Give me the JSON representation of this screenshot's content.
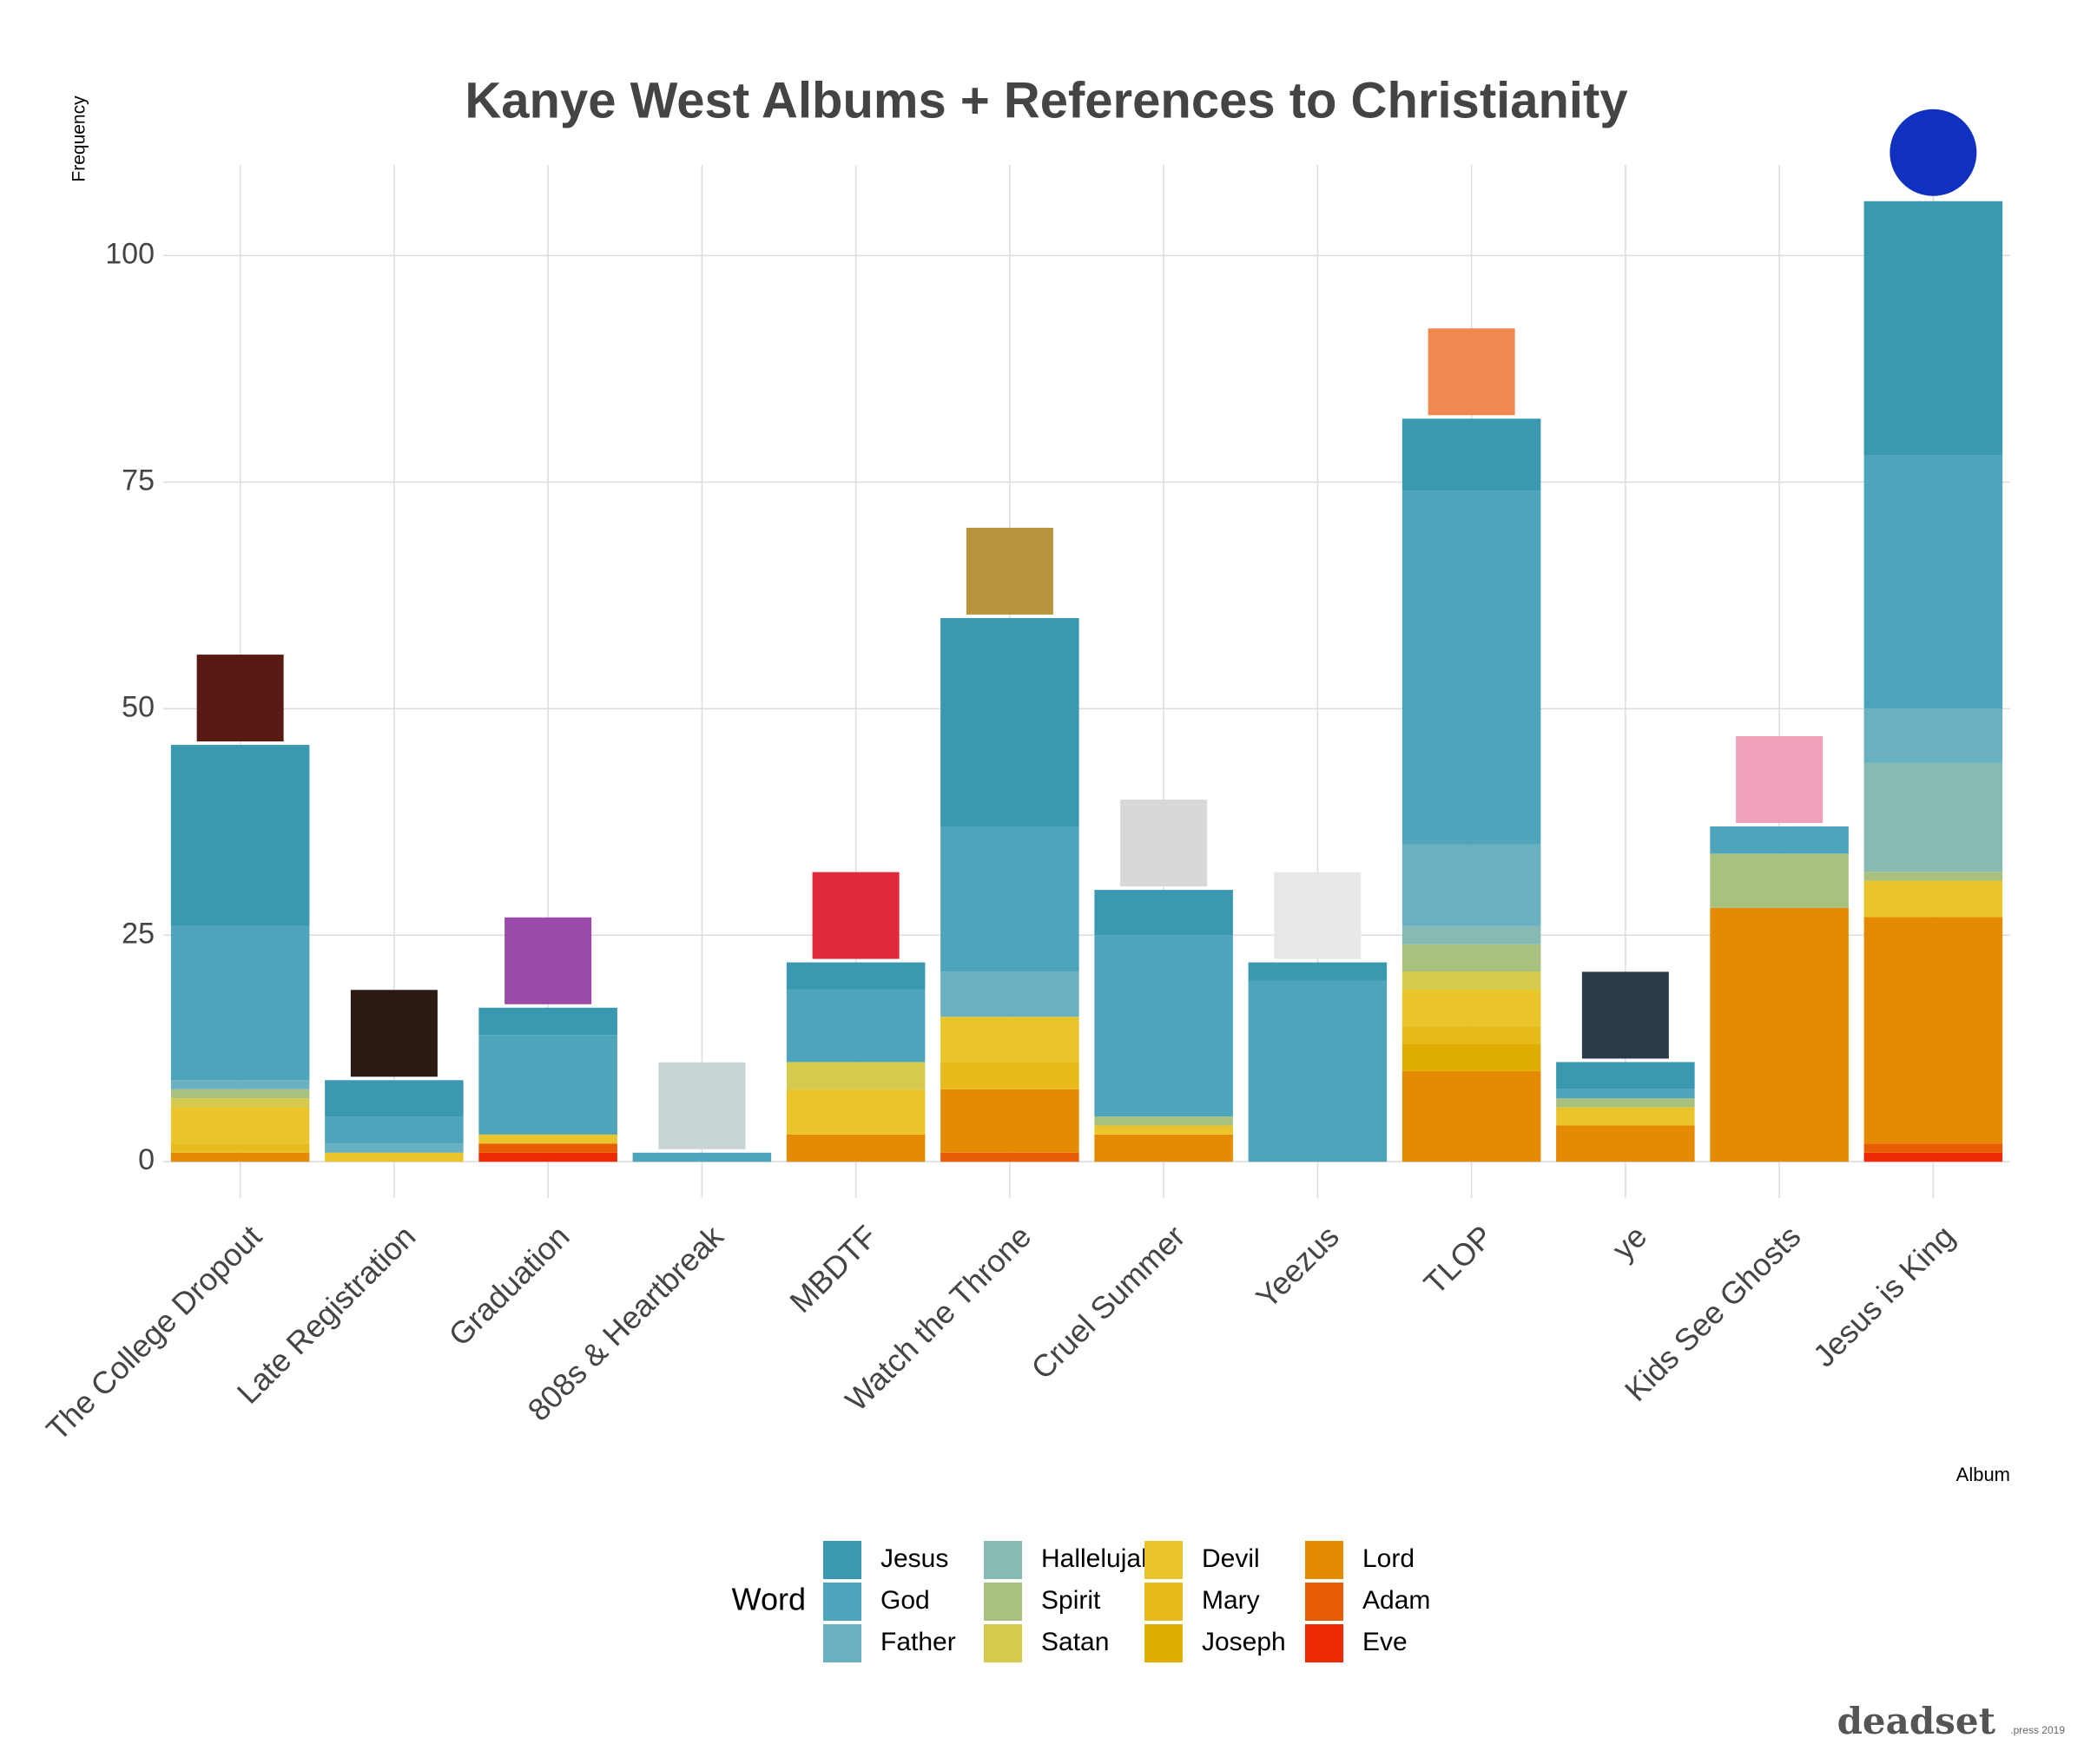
{
  "chart_data": {
    "type": "stacked_bar",
    "title": "Kanye West Albums + References to Christianity",
    "y_label": "Frequency",
    "x_label": "Album",
    "legend_title": "Word",
    "footer_brand": "deadset",
    "footer_note": ".press  2019",
    "categories": [
      "The College Dropout",
      "Late Registration",
      "Graduation",
      "808s & Heartbreak",
      "MBDTF",
      "Watch the Throne",
      "Cruel Summer",
      "Yeezus",
      "TLOP",
      "ye",
      "Kids See Ghosts",
      "Jesus is King"
    ],
    "ylim": [
      -4,
      110
    ],
    "yticks": [
      0,
      25,
      50,
      75,
      100
    ],
    "grid": true,
    "series": [
      {
        "name": "Jesus",
        "color": "#3a99b1",
        "values": [
          20,
          4,
          3,
          0,
          3,
          23,
          5,
          2,
          8,
          3,
          0,
          28
        ]
      },
      {
        "name": "God",
        "color": "#4ea4bb",
        "values": [
          17,
          3,
          11,
          1,
          8,
          16,
          20,
          20,
          39,
          1,
          3,
          28
        ]
      },
      {
        "name": "Father",
        "color": "#69b0c0",
        "values": [
          1,
          1,
          0,
          0,
          0,
          5,
          0,
          0,
          9,
          0,
          0,
          6
        ]
      },
      {
        "name": "Hallelujah",
        "color": "#86bab3",
        "values": [
          0,
          0,
          0,
          0,
          0,
          0,
          0,
          0,
          2,
          0,
          0,
          12
        ]
      },
      {
        "name": "Spirit",
        "color": "#a9c17e",
        "values": [
          1,
          0,
          0,
          0,
          0,
          0,
          1,
          0,
          3,
          1,
          6,
          1
        ]
      },
      {
        "name": "Satan",
        "color": "#d5ca4e",
        "values": [
          1,
          0,
          0,
          0,
          3,
          0,
          0,
          0,
          2,
          0,
          0,
          0
        ]
      },
      {
        "name": "Devil",
        "color": "#e9c52b",
        "values": [
          4,
          1,
          1,
          0,
          5,
          5,
          1,
          0,
          4,
          2,
          0,
          4
        ]
      },
      {
        "name": "Mary",
        "color": "#e7bb1b",
        "values": [
          1,
          0,
          0,
          0,
          0,
          3,
          0,
          0,
          2,
          0,
          0,
          0
        ]
      },
      {
        "name": "Joseph",
        "color": "#e0ae00",
        "values": [
          0,
          0,
          0,
          0,
          0,
          0,
          0,
          0,
          3,
          0,
          0,
          0
        ]
      },
      {
        "name": "Lord",
        "color": "#e58a03",
        "values": [
          1,
          0,
          0,
          0,
          3,
          7,
          3,
          0,
          10,
          4,
          28,
          25
        ]
      },
      {
        "name": "Adam",
        "color": "#e85c04",
        "values": [
          0,
          0,
          1,
          0,
          0,
          1,
          0,
          0,
          0,
          0,
          0,
          1
        ]
      },
      {
        "name": "Eve",
        "color": "#ec2a04",
        "values": [
          0,
          0,
          1,
          0,
          0,
          0,
          0,
          0,
          0,
          0,
          0,
          1
        ]
      }
    ]
  }
}
